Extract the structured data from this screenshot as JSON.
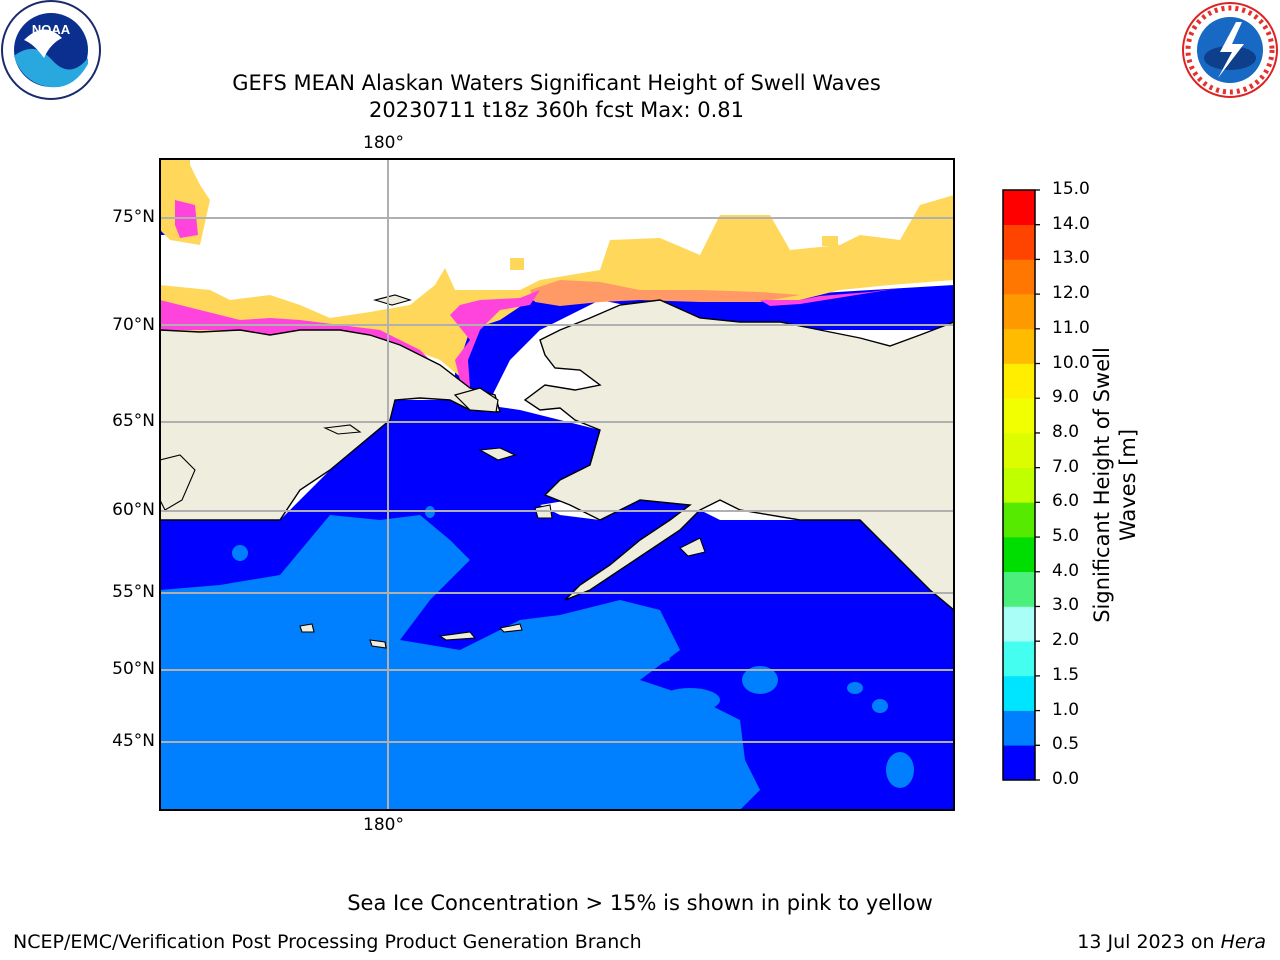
{
  "title": {
    "line1": "GEFS MEAN Alaskan Waters Significant Height of Swell Waves",
    "line2": "20230711 t18z 360h fcst   Max: 0.81"
  },
  "logos": {
    "noaa": {
      "icon": "noaa-logo",
      "text": "NOAA",
      "ring_text": "NATIONAL OCEANIC AND ATMOSPHERIC ADMINISTRATION · U.S. DEPARTMENT OF COMMERCE"
    },
    "nws": {
      "icon": "nws-logo",
      "ring_text": "NATIONAL WEATHER SERVICE"
    }
  },
  "map": {
    "region": "Alaskan Waters",
    "lon_label_top": "180°",
    "lon_label_bottom": "180°",
    "lat_labels": [
      "75°N",
      "70°N",
      "65°N",
      "60°N",
      "55°N",
      "50°N",
      "45°N"
    ],
    "colors": {
      "land": "#efedde",
      "sea_low": "#0000ff",
      "sea_mid": "#007fff",
      "ice_pink": "#ff44dd",
      "ice_orange": "#ff9966",
      "ice_yellow": "#ffd75a",
      "gridline": "#b0b0b0",
      "coast": "#000000"
    }
  },
  "colorbar": {
    "label_line1": "Significant Height of Swell",
    "label_line2": "Waves [m]",
    "ticks": [
      "15.0",
      "14.0",
      "13.0",
      "12.0",
      "11.0",
      "10.0",
      "9.0",
      "8.0",
      "7.0",
      "6.0",
      "5.0",
      "4.0",
      "3.0",
      "2.0",
      "1.5",
      "1.0",
      "0.5",
      "0.0"
    ],
    "bins": [
      {
        "from": "0.0",
        "to": "0.5",
        "color": "#0000ff"
      },
      {
        "from": "0.5",
        "to": "1.0",
        "color": "#007fff"
      },
      {
        "from": "1.0",
        "to": "1.5",
        "color": "#00e5ff"
      },
      {
        "from": "1.5",
        "to": "2.0",
        "color": "#44fff0"
      },
      {
        "from": "2.0",
        "to": "3.0",
        "color": "#a9fff7"
      },
      {
        "from": "3.0",
        "to": "4.0",
        "color": "#4bf07c"
      },
      {
        "from": "4.0",
        "to": "5.0",
        "color": "#00dd00"
      },
      {
        "from": "5.0",
        "to": "6.0",
        "color": "#55ea00"
      },
      {
        "from": "6.0",
        "to": "7.0",
        "color": "#bfff00"
      },
      {
        "from": "7.0",
        "to": "8.0",
        "color": "#dcfd00"
      },
      {
        "from": "8.0",
        "to": "9.0",
        "color": "#f2ff00"
      },
      {
        "from": "9.0",
        "to": "10.0",
        "color": "#ffee00"
      },
      {
        "from": "10.0",
        "to": "11.0",
        "color": "#ffbb00"
      },
      {
        "from": "11.0",
        "to": "12.0",
        "color": "#ff9900"
      },
      {
        "from": "12.0",
        "to": "13.0",
        "color": "#ff7700"
      },
      {
        "from": "13.0",
        "to": "14.0",
        "color": "#ff4400"
      },
      {
        "from": "14.0",
        "to": "15.0",
        "color": "#ff0000"
      }
    ]
  },
  "footer": {
    "note": "Sea Ice Concentration > 15% is shown in pink to yellow",
    "credit": "NCEP/EMC/Verification Post Processing Product Generation Branch",
    "date_prefix": "13 Jul 2023 on",
    "machine": "Hera"
  }
}
